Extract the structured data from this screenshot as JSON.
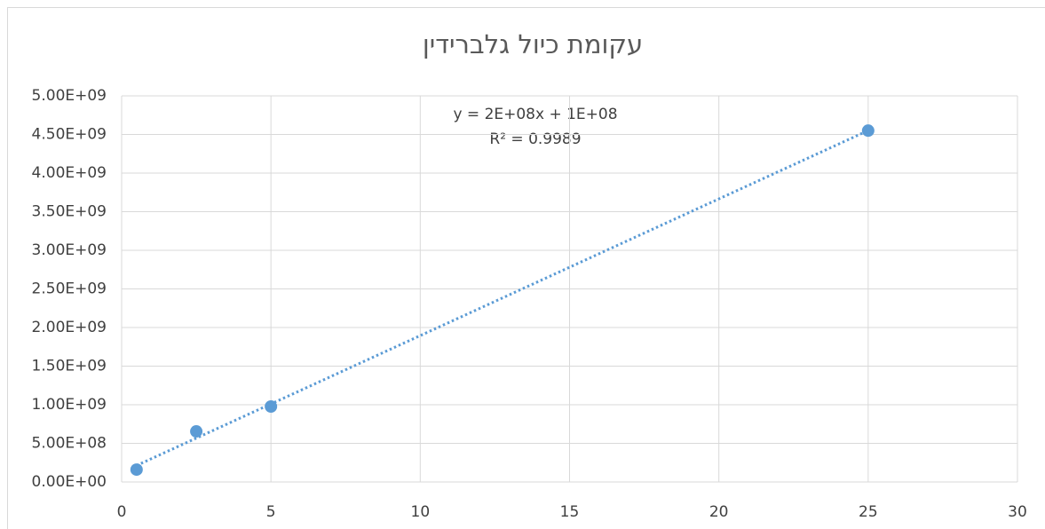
{
  "chart_data": {
    "type": "scatter",
    "title": "עקומת כיול גלברידין",
    "x": [
      0.5,
      2.5,
      5,
      25
    ],
    "series": [
      {
        "color": "#5b9bd5",
        "values": [
          160000000,
          655000000,
          977000000,
          4550000000
        ]
      }
    ],
    "trendline": {
      "type": "linear",
      "color": "#5b9bd5",
      "equation": "y = 2E+08x + 1E+08",
      "r_squared": "R² = 0.9989"
    },
    "xlim": [
      0,
      30
    ],
    "xticks": [
      0,
      5,
      10,
      15,
      20,
      25,
      30
    ],
    "ylim": [
      0,
      5000000000
    ],
    "yticks": [
      {
        "value": 0,
        "label": "0.00E+00"
      },
      {
        "value": 500000000,
        "label": "5.00E+08"
      },
      {
        "value": 1000000000,
        "label": "1.00E+09"
      },
      {
        "value": 1500000000,
        "label": "1.50E+09"
      },
      {
        "value": 2000000000,
        "label": "2.00E+09"
      },
      {
        "value": 2500000000,
        "label": "2.50E+09"
      },
      {
        "value": 3000000000,
        "label": "3.00E+09"
      },
      {
        "value": 3500000000,
        "label": "3.50E+09"
      },
      {
        "value": 4000000000,
        "label": "4.00E+09"
      },
      {
        "value": 4500000000,
        "label": "4.50E+09"
      },
      {
        "value": 5000000000,
        "label": "5.00E+09"
      }
    ],
    "grid": true
  }
}
